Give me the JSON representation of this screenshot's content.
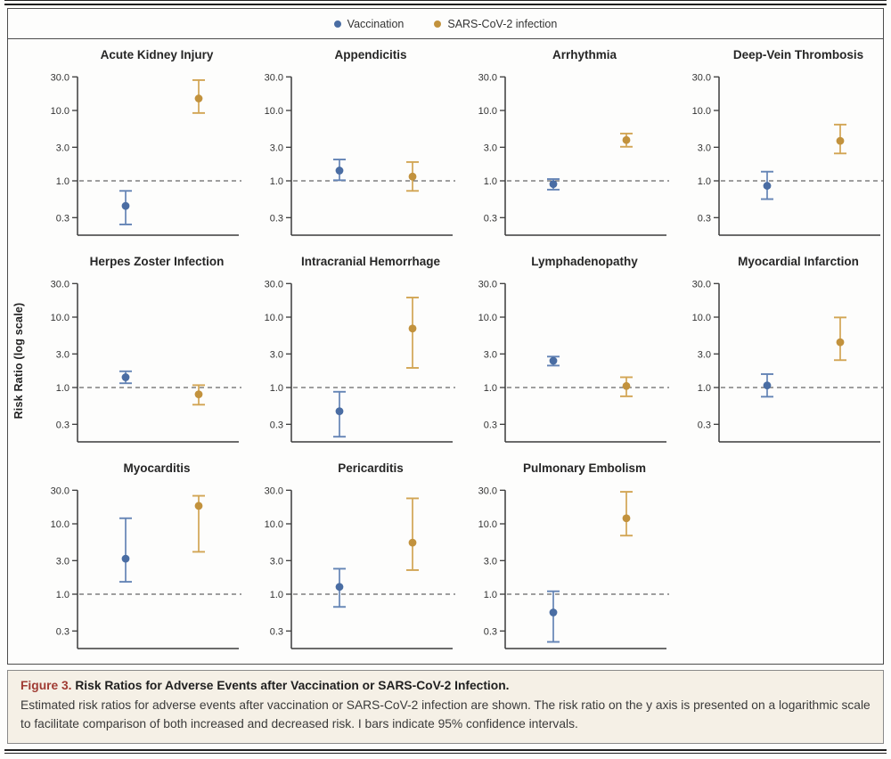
{
  "legend": {
    "items": [
      {
        "label": "Vaccination",
        "color": "#4a6da3",
        "line_color": "#6484b5"
      },
      {
        "label": "SARS-CoV-2 infection",
        "color": "#c2923d",
        "line_color": "#d2a554"
      }
    ]
  },
  "ylabel": "Risk Ratio (log scale)",
  "caption": {
    "label": "Figure 3.",
    "title": "Risk Ratios for Adverse Events after Vaccination or SARS-CoV-2 Infection.",
    "body": "Estimated risk ratios for adverse events after vaccination or SARS-CoV-2 infection are shown. The risk ratio on the y axis is presented on a logarithmic scale to facilitate comparison of both increased and decreased risk. I bars indicate 95% confidence intervals."
  },
  "chart_data": {
    "type": "scatter",
    "subtype": "forest-plot-small-multiples",
    "y_scale": "log",
    "ylabel": "Risk Ratio (log scale)",
    "yticks": [
      30.0,
      10.0,
      3.0,
      1.0,
      0.3
    ],
    "ytick_labels": [
      "30.0",
      "10.0",
      "3.0",
      "1.0",
      "0.3"
    ],
    "ylim": [
      0.18,
      32
    ],
    "reference_line": 1.0,
    "legend_position": "top-center",
    "grid": false,
    "series_names": [
      "Vaccination",
      "SARS-CoV-2 infection"
    ],
    "panels": [
      {
        "title": "Acute Kidney Injury",
        "series": [
          {
            "name": "Vaccination",
            "rr": 0.44,
            "ci_low": 0.24,
            "ci_high": 0.72
          },
          {
            "name": "SARS-CoV-2 infection",
            "rr": 14.8,
            "ci_low": 9.2,
            "ci_high": 27.0
          }
        ]
      },
      {
        "title": "Appendicitis",
        "series": [
          {
            "name": "Vaccination",
            "rr": 1.4,
            "ci_low": 1.02,
            "ci_high": 2.01
          },
          {
            "name": "SARS-CoV-2 infection",
            "rr": 1.15,
            "ci_low": 0.72,
            "ci_high": 1.85
          }
        ]
      },
      {
        "title": "Arrhythmia",
        "series": [
          {
            "name": "Vaccination",
            "rr": 0.9,
            "ci_low": 0.75,
            "ci_high": 1.06
          },
          {
            "name": "SARS-CoV-2 infection",
            "rr": 3.8,
            "ci_low": 3.05,
            "ci_high": 4.7
          }
        ]
      },
      {
        "title": "Deep-Vein Thrombosis",
        "series": [
          {
            "name": "Vaccination",
            "rr": 0.85,
            "ci_low": 0.55,
            "ci_high": 1.35
          },
          {
            "name": "SARS-CoV-2 infection",
            "rr": 3.7,
            "ci_low": 2.45,
            "ci_high": 6.3
          }
        ]
      },
      {
        "title": "Herpes Zoster Infection",
        "series": [
          {
            "name": "Vaccination",
            "rr": 1.4,
            "ci_low": 1.15,
            "ci_high": 1.7
          },
          {
            "name": "SARS-CoV-2 infection",
            "rr": 0.8,
            "ci_low": 0.57,
            "ci_high": 1.08
          }
        ]
      },
      {
        "title": "Intracranial Hemorrhage",
        "series": [
          {
            "name": "Vaccination",
            "rr": 0.46,
            "ci_low": 0.2,
            "ci_high": 0.87
          },
          {
            "name": "SARS-CoV-2 infection",
            "rr": 6.9,
            "ci_low": 1.9,
            "ci_high": 19.0
          }
        ]
      },
      {
        "title": "Lymphadenopathy",
        "series": [
          {
            "name": "Vaccination",
            "rr": 2.4,
            "ci_low": 2.05,
            "ci_high": 2.75
          },
          {
            "name": "SARS-CoV-2 infection",
            "rr": 1.05,
            "ci_low": 0.75,
            "ci_high": 1.4
          }
        ]
      },
      {
        "title": "Myocardial Infarction",
        "series": [
          {
            "name": "Vaccination",
            "rr": 1.07,
            "ci_low": 0.74,
            "ci_high": 1.55
          },
          {
            "name": "SARS-CoV-2 infection",
            "rr": 4.4,
            "ci_low": 2.45,
            "ci_high": 9.9
          }
        ]
      },
      {
        "title": "Myocarditis",
        "series": [
          {
            "name": "Vaccination",
            "rr": 3.2,
            "ci_low": 1.5,
            "ci_high": 12.0
          },
          {
            "name": "SARS-CoV-2 infection",
            "rr": 18.0,
            "ci_low": 4.0,
            "ci_high": 25.0
          }
        ]
      },
      {
        "title": "Pericarditis",
        "series": [
          {
            "name": "Vaccination",
            "rr": 1.27,
            "ci_low": 0.66,
            "ci_high": 2.3
          },
          {
            "name": "SARS-CoV-2 infection",
            "rr": 5.4,
            "ci_low": 2.2,
            "ci_high": 23.0
          }
        ]
      },
      {
        "title": "Pulmonary Embolism",
        "series": [
          {
            "name": "Vaccination",
            "rr": 0.55,
            "ci_low": 0.21,
            "ci_high": 1.1
          },
          {
            "name": "SARS-CoV-2 infection",
            "rr": 12.0,
            "ci_low": 6.8,
            "ci_high": 28.5
          }
        ]
      }
    ]
  }
}
